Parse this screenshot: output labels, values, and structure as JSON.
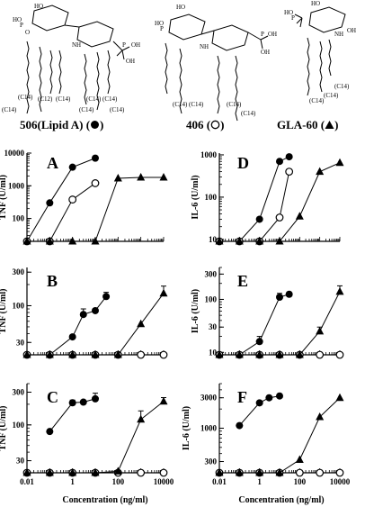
{
  "structures": {
    "labels": [
      "506(Lipid A)",
      "406",
      "GLA-60"
    ],
    "symbols": [
      "filled-circle",
      "open-circle",
      "filled-triangle"
    ],
    "mol_text": {
      "ho": "HO",
      "hop": "HO",
      "ho2": "HO",
      "o": "O",
      "p": "P",
      "oh": "OH",
      "nh": "NH",
      "c14": "(C14)",
      "c12": "(C12)"
    }
  },
  "xlabel": "Concentration (ng/ml)",
  "chart_data": [
    {
      "panel": "A",
      "type": "line",
      "ylabel": "TNF (U/ml)",
      "yscale": "log",
      "xscale": "log",
      "xlim": [
        0.01,
        10000
      ],
      "ylim": [
        20,
        10000
      ],
      "yticks": [
        100,
        1000,
        10000
      ],
      "ytick_labels": [
        "100",
        "1000",
        "10000"
      ],
      "series": [
        {
          "symbol": "filled-circle",
          "x": [
            0.01,
            0.1,
            1,
            10
          ],
          "y": [
            20,
            300,
            3700,
            7000
          ]
        },
        {
          "symbol": "open-circle",
          "x": [
            0.01,
            0.1,
            1,
            10
          ],
          "y": [
            20,
            20,
            380,
            1200
          ]
        },
        {
          "symbol": "filled-triangle",
          "x": [
            0.01,
            0.1,
            1,
            10,
            100,
            1000,
            10000
          ],
          "y": [
            20,
            20,
            20,
            20,
            1700,
            1800,
            1800
          ]
        }
      ]
    },
    {
      "panel": "B",
      "type": "line",
      "ylabel": "TNF (U/ml)",
      "yscale": "log",
      "xscale": "log",
      "xlim": [
        0.01,
        10000
      ],
      "ylim": [
        20,
        350
      ],
      "yticks": [
        30,
        100,
        300
      ],
      "ytick_labels": [
        "30",
        "100",
        "300"
      ],
      "series": [
        {
          "symbol": "filled-circle",
          "x": [
            0.01,
            0.1,
            1,
            3,
            10,
            30
          ],
          "y": [
            20,
            20,
            36,
            75,
            85,
            135
          ],
          "err": [
            0,
            0,
            0,
            15,
            0,
            20
          ]
        },
        {
          "symbol": "open-circle",
          "x": [
            0.01,
            0.1,
            1,
            10,
            100,
            1000,
            10000
          ],
          "y": [
            20,
            20,
            20,
            20,
            20,
            20,
            20
          ]
        },
        {
          "symbol": "filled-triangle",
          "x": [
            0.01,
            0.1,
            1,
            10,
            100,
            1000,
            10000
          ],
          "y": [
            20,
            20,
            20,
            20,
            20,
            55,
            150
          ],
          "err": [
            0,
            0,
            0,
            0,
            0,
            0,
            40
          ]
        }
      ]
    },
    {
      "panel": "C",
      "type": "line",
      "ylabel": "TNF (U/ml)",
      "yscale": "log",
      "xscale": "log",
      "xlim": [
        0.01,
        10000
      ],
      "ylim": [
        20,
        400
      ],
      "yticks": [
        30,
        100,
        300
      ],
      "ytick_labels": [
        "30",
        "100",
        "300"
      ],
      "series": [
        {
          "symbol": "filled-circle",
          "x": [
            0.1,
            1,
            3,
            10
          ],
          "y": [
            80,
            210,
            215,
            240
          ],
          "err": [
            0,
            20,
            0,
            50
          ]
        },
        {
          "symbol": "open-circle",
          "x": [
            0.01,
            0.1,
            1,
            10,
            100,
            1000,
            10000
          ],
          "y": [
            20,
            20,
            20,
            20,
            20,
            20,
            20
          ]
        },
        {
          "symbol": "filled-triangle",
          "x": [
            0.01,
            0.1,
            1,
            10,
            100,
            1000,
            10000
          ],
          "y": [
            20,
            20,
            20,
            20,
            21,
            120,
            220
          ],
          "err": [
            0,
            0,
            0,
            0,
            0,
            40,
            30
          ]
        }
      ]
    },
    {
      "panel": "D",
      "type": "line",
      "ylabel": "IL-6 (U/ml)",
      "yscale": "log",
      "xscale": "log",
      "xlim": [
        0.01,
        10000
      ],
      "ylim": [
        9,
        1100
      ],
      "yticks": [
        10,
        100,
        1000
      ],
      "ytick_labels": [
        "10",
        "100",
        "1000"
      ],
      "series": [
        {
          "symbol": "filled-circle",
          "x": [
            0.01,
            0.1,
            1,
            10,
            30
          ],
          "y": [
            9,
            9,
            30,
            700,
            900
          ]
        },
        {
          "symbol": "open-circle",
          "x": [
            0.01,
            0.1,
            1,
            10,
            30
          ],
          "y": [
            9,
            9,
            9,
            33,
            400
          ]
        },
        {
          "symbol": "filled-triangle",
          "x": [
            0.01,
            0.1,
            1,
            10,
            100,
            1000,
            10000
          ],
          "y": [
            9,
            9,
            9,
            9,
            35,
            400,
            650
          ]
        }
      ]
    },
    {
      "panel": "E",
      "type": "line",
      "ylabel": "IL-6 (U/ml)",
      "yscale": "log",
      "xscale": "log",
      "xlim": [
        0.01,
        10000
      ],
      "ylim": [
        9,
        400
      ],
      "yticks": [
        10,
        30,
        100,
        300
      ],
      "ytick_labels": [
        "10",
        "30",
        "100",
        "300"
      ],
      "series": [
        {
          "symbol": "filled-circle",
          "x": [
            0.01,
            0.1,
            1,
            10,
            30
          ],
          "y": [
            9,
            9,
            16,
            110,
            125
          ],
          "err": [
            0,
            0,
            4,
            20,
            0
          ]
        },
        {
          "symbol": "open-circle",
          "x": [
            0.01,
            0.1,
            1,
            10,
            100,
            1000,
            10000
          ],
          "y": [
            9,
            9,
            9,
            9,
            9,
            9,
            9
          ]
        },
        {
          "symbol": "filled-triangle",
          "x": [
            0.01,
            0.1,
            1,
            10,
            100,
            1000,
            10000
          ],
          "y": [
            9,
            9,
            9,
            9,
            9,
            25,
            140
          ],
          "err": [
            0,
            0,
            0,
            0,
            0,
            5,
            40
          ]
        }
      ]
    },
    {
      "panel": "F",
      "type": "line",
      "ylabel": "IL-6 (U/ml)",
      "yscale": "log",
      "xscale": "log",
      "xlim": [
        0.01,
        10000
      ],
      "ylim": [
        200,
        5000
      ],
      "yticks": [
        300,
        1000,
        3000
      ],
      "ytick_labels": [
        "300",
        "1000",
        "3000"
      ],
      "series": [
        {
          "symbol": "filled-circle",
          "x": [
            0.1,
            1,
            3,
            10
          ],
          "y": [
            1100,
            2500,
            3000,
            3200
          ]
        },
        {
          "symbol": "open-circle",
          "x": [
            0.01,
            0.1,
            1,
            10,
            100,
            1000,
            10000
          ],
          "y": [
            200,
            200,
            200,
            200,
            200,
            200,
            200
          ]
        },
        {
          "symbol": "filled-triangle",
          "x": [
            0.01,
            0.1,
            1,
            10,
            100,
            1000,
            10000
          ],
          "y": [
            200,
            200,
            200,
            200,
            320,
            1500,
            3000
          ]
        }
      ]
    }
  ],
  "xticks": [
    0.01,
    1,
    100,
    10000
  ],
  "xtick_labels": [
    "0.01",
    "1",
    "100",
    "10000"
  ]
}
